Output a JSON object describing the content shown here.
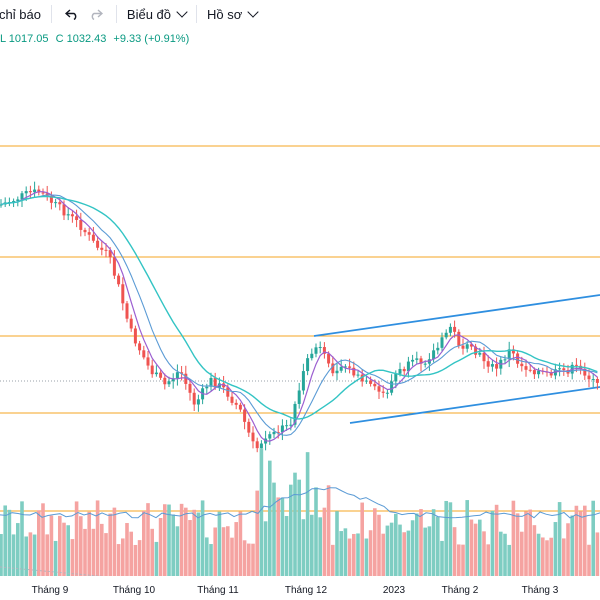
{
  "toolbar": {
    "indicators_label": "chỉ báo",
    "chart_label": "Biểu đồ",
    "profile_label": "Hồ sơ",
    "undo_icon": "undo-icon",
    "redo_icon": "redo-icon",
    "chevron_icon": "chevron-down-icon"
  },
  "legend": {
    "low": "L 1017.05",
    "close": "C 1032.43",
    "change": "+9.33 (+0.91%)",
    "color": "#089981"
  },
  "colors": {
    "up": "#26a69a",
    "down": "#ef5350",
    "vol_up": "#7ecdc2",
    "vol_down": "#f5a3a1",
    "ma_short": "#9c5fd1",
    "ma_mid": "#5b9bd5",
    "ma_long": "#33c4c4",
    "hline": "#f5a623",
    "channel": "#2f8fe0",
    "axis_text": "#131722"
  },
  "chart_data": {
    "type": "candlestick",
    "x_labels": [
      "Tháng 9",
      "Tháng 10",
      "Tháng 11",
      "Tháng 12",
      "2023",
      "Tháng 2",
      "Tháng 3"
    ],
    "last_close": 1032.43,
    "last_low": 1017.05,
    "last_change": 9.33,
    "last_change_pct": 0.91
  }
}
